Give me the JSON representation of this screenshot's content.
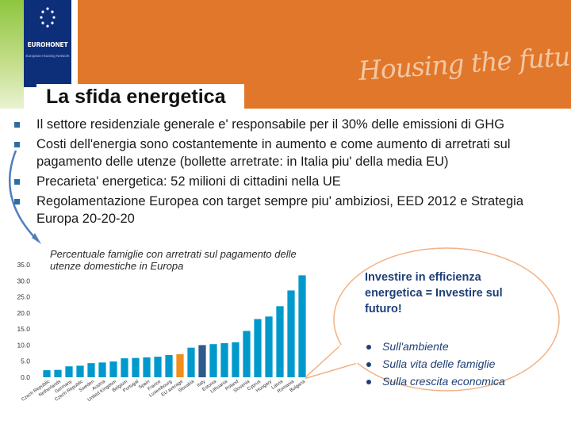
{
  "header": {
    "logo_name": "EUROHONET",
    "logo_subtitle": "European Housing Network",
    "tagline": "Housing the future",
    "colors": {
      "orange": "#E1772A",
      "navy": "#0d2f7a",
      "green": "#8ec63f"
    }
  },
  "slide": {
    "title": "La sfida energetica",
    "bullets": [
      "Il settore residenziale generale e' responsabile per il 30% delle emissioni di GHG",
      "Costi dell'energia sono costantemente in aumento e come aumento di arretrati sul pagamento delle utenze (bollette arretrate: in Italia piu' della media EU)",
      "Precarieta' energetica: 52 milioni di cittadini nella UE",
      "Regolamentazione Europea con target sempre piu' ambiziosi, EED 2012 e Strategia Europa 20-20-20"
    ]
  },
  "chart_data": {
    "type": "bar",
    "title": "Percentuale famiglie con arretrati sul pagamento delle utenze domestiche in Europa",
    "ylim": [
      0,
      35
    ],
    "yticks": [
      "0.0",
      "5.0",
      "10.0",
      "15.0",
      "20.0",
      "25.0",
      "30.0",
      "35.0"
    ],
    "categories": [
      "Czech Republic",
      "Netherlands",
      "Germany",
      "Czech Republic",
      "Sweden",
      "Austria",
      "United Kingdom",
      "Belgium",
      "Portugal",
      "Spain",
      "France",
      "Luxembourg",
      "EU average",
      "Slovakia",
      "Italy",
      "Estonia",
      "Lithuania",
      "Poland",
      "Slovenia",
      "Cyprus",
      "Hungary",
      "Latvia",
      "Romania",
      "Bulgaria"
    ],
    "values": [
      2.2,
      2.3,
      3.4,
      3.6,
      4.4,
      4.6,
      4.9,
      5.9,
      6.0,
      6.2,
      6.4,
      6.9,
      7.2,
      9.2,
      10.0,
      10.3,
      10.6,
      10.9,
      14.4,
      18.1,
      18.9,
      22.1,
      27.0,
      31.7
    ],
    "colors": {
      "default": "#0099CC",
      "eu_average": "#F28E1C",
      "highlight": "#2E5A8C"
    },
    "highlights": {
      "EU average": "eu_average",
      "Italy": "highlight"
    },
    "grid": false
  },
  "callout": {
    "text": "Investire in efficienza energetica = Investire sul futuro!",
    "bullets": [
      "Sull'ambiente",
      "Sulla vita delle famiglie",
      "Sulla crescita economica"
    ],
    "colors": {
      "fill": "#ffffff",
      "stroke": "#F4B183",
      "text": "#1f3f77"
    }
  }
}
